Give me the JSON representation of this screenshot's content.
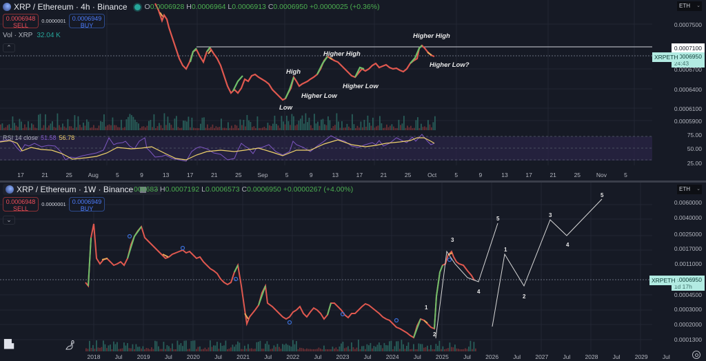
{
  "top_chart": {
    "symbol": "XRP / Ethereum · 4h · Binance",
    "ohlc": {
      "o_label": "O",
      "o": "0.0006928",
      "h_label": "H",
      "h": "0.0006964",
      "l_label": "L",
      "l": "0.0006913",
      "c_label": "C",
      "c": "0.0006950",
      "change": "+0.0000025 (+0.36%)"
    },
    "sell_price": "0.0006948",
    "sell_label": "SELL",
    "spread": "0.0000001",
    "buy_price": "0.0006949",
    "buy_label": "BUY",
    "volume_legend": {
      "label": "Vol · XRP",
      "value": "32.04 K"
    },
    "currency": "ETH",
    "y_ticks": [
      "0.0007500",
      "0.0006700",
      "0.0006400",
      "0.0006100",
      "0.0005900"
    ],
    "hline_price": "0.0007100",
    "last_price_symbol": "XRPETH",
    "last_price": "0.0006950",
    "countdown": "24:43",
    "annotations": [
      "Low",
      "High",
      "Higher Low",
      "Higher High",
      "Higher Low",
      "Higher High",
      "Higher Low?"
    ],
    "rsi": {
      "label": "RSI 14 close",
      "value1": "51.58",
      "value2": "56.78",
      "y_ticks": [
        "75.00",
        "50.00",
        "25.00"
      ]
    },
    "x_ticks": [
      "17",
      "21",
      "25",
      "Aug",
      "5",
      "9",
      "13",
      "17",
      "21",
      "25",
      "Sep",
      "5",
      "9",
      "13",
      "17",
      "21",
      "25",
      "Oct",
      "5",
      "9",
      "13",
      "17",
      "21",
      "25",
      "Nov",
      "5"
    ]
  },
  "bottom_chart": {
    "symbol": "XRP / Ethereum · 1W · Binance",
    "ohlc": {
      "o_partial": "006683",
      "h_label": "H",
      "h": "0.0007192",
      "l_label": "L",
      "l": "0.0006573",
      "c_label": "C",
      "c": "0.0006950",
      "change": "+0.0000267 (+4.00%)"
    },
    "more_icon": "···",
    "sell_price": "0.0006948",
    "sell_label": "SELL",
    "spread": "0.0000001",
    "buy_price": "0.0006949",
    "buy_label": "BUY",
    "currency": "ETH",
    "y_ticks": [
      "0.0060000",
      "0.0040000",
      "0.0025000",
      "0.0017000",
      "0.0011000",
      "0.0004500",
      "0.0003000",
      "0.0002000",
      "0.0001300"
    ],
    "last_price_symbol": "XRPETH",
    "last_price": "0.0006950",
    "countdown": "1d 17h",
    "wave_labels": [
      "1",
      "2",
      "3",
      "4",
      "5",
      "1",
      "2",
      "3",
      "4",
      "5"
    ],
    "x_ticks": [
      "2018",
      "Jul",
      "2019",
      "Jul",
      "2020",
      "Jul",
      "2021",
      "Jul",
      "2022",
      "Jul",
      "2023",
      "Jul",
      "2024",
      "Jul",
      "2025",
      "Jul",
      "2026",
      "Jul",
      "2027",
      "Jul",
      "2028",
      "Jul",
      "2029",
      "Jul"
    ]
  },
  "colors": {
    "background": "#161a25",
    "up": "#26a69a",
    "down": "#ef5350",
    "candle_up": "#6fbf6a",
    "candle_down": "#e0584f",
    "rsi_line": "#7e57c2",
    "rsi_ma": "#f0d36b",
    "price_tag": "#b2ebe2"
  }
}
